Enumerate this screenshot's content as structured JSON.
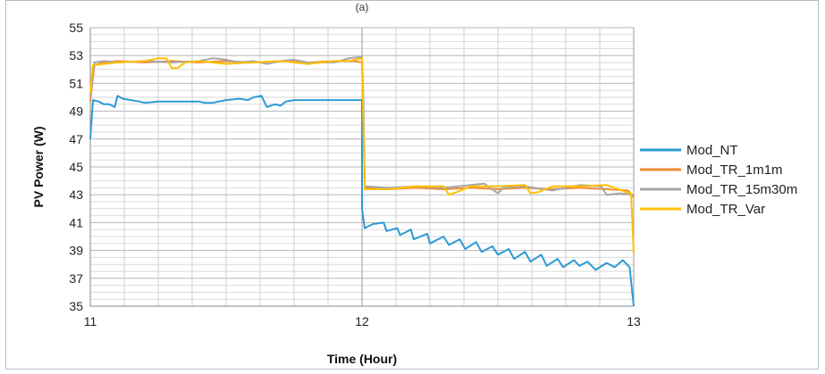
{
  "chart_data": {
    "type": "line",
    "title": "(a)",
    "xlabel": "Time (Hour)",
    "ylabel": "PV Power (W)",
    "xlim": [
      11,
      13
    ],
    "ylim": [
      35,
      55
    ],
    "x_ticks": [
      "11",
      "12",
      "13"
    ],
    "y_ticks": [
      "35",
      "37",
      "39",
      "41",
      "43",
      "45",
      "47",
      "49",
      "51",
      "53",
      "55"
    ],
    "grid": true,
    "legend_position": "right",
    "series": [
      {
        "name": "Mod_NT",
        "color": "#2e9bd6",
        "points": [
          [
            11.0,
            47.0
          ],
          [
            11.01,
            49.8
          ],
          [
            11.03,
            49.7
          ],
          [
            11.05,
            49.5
          ],
          [
            11.07,
            49.5
          ],
          [
            11.09,
            49.3
          ],
          [
            11.1,
            50.1
          ],
          [
            11.12,
            49.9
          ],
          [
            11.15,
            49.8
          ],
          [
            11.18,
            49.7
          ],
          [
            11.2,
            49.6
          ],
          [
            11.25,
            49.7
          ],
          [
            11.3,
            49.7
          ],
          [
            11.35,
            49.7
          ],
          [
            11.4,
            49.7
          ],
          [
            11.42,
            49.6
          ],
          [
            11.45,
            49.6
          ],
          [
            11.5,
            49.8
          ],
          [
            11.55,
            49.9
          ],
          [
            11.58,
            49.8
          ],
          [
            11.6,
            50.0
          ],
          [
            11.63,
            50.1
          ],
          [
            11.65,
            49.3
          ],
          [
            11.68,
            49.5
          ],
          [
            11.7,
            49.4
          ],
          [
            11.72,
            49.7
          ],
          [
            11.75,
            49.8
          ],
          [
            12.0,
            49.8
          ],
          [
            12.0,
            42.0
          ],
          [
            12.01,
            40.6
          ],
          [
            12.04,
            40.9
          ],
          [
            12.08,
            41.0
          ],
          [
            12.09,
            40.4
          ],
          [
            12.13,
            40.6
          ],
          [
            12.14,
            40.1
          ],
          [
            12.18,
            40.5
          ],
          [
            12.19,
            39.8
          ],
          [
            12.24,
            40.2
          ],
          [
            12.25,
            39.5
          ],
          [
            12.3,
            40.0
          ],
          [
            12.32,
            39.4
          ],
          [
            12.36,
            39.8
          ],
          [
            12.38,
            39.1
          ],
          [
            12.42,
            39.6
          ],
          [
            12.44,
            38.9
          ],
          [
            12.48,
            39.3
          ],
          [
            12.5,
            38.7
          ],
          [
            12.54,
            39.1
          ],
          [
            12.56,
            38.4
          ],
          [
            12.6,
            38.9
          ],
          [
            12.62,
            38.2
          ],
          [
            12.66,
            38.7
          ],
          [
            12.68,
            37.9
          ],
          [
            12.72,
            38.4
          ],
          [
            12.74,
            37.8
          ],
          [
            12.78,
            38.3
          ],
          [
            12.8,
            37.9
          ],
          [
            12.83,
            38.2
          ],
          [
            12.86,
            37.6
          ],
          [
            12.9,
            38.1
          ],
          [
            12.93,
            37.8
          ],
          [
            12.96,
            38.3
          ],
          [
            12.985,
            37.8
          ],
          [
            13.0,
            35.0
          ]
        ]
      },
      {
        "name": "Mod_TR_1m1m",
        "color": "#f28c38",
        "points": [
          [
            11.0,
            49.7
          ],
          [
            11.015,
            52.3
          ],
          [
            11.05,
            52.5
          ],
          [
            11.1,
            52.6
          ],
          [
            11.2,
            52.5
          ],
          [
            11.3,
            52.6
          ],
          [
            11.4,
            52.5
          ],
          [
            11.5,
            52.6
          ],
          [
            11.6,
            52.5
          ],
          [
            11.7,
            52.6
          ],
          [
            11.8,
            52.5
          ],
          [
            11.9,
            52.6
          ],
          [
            11.97,
            52.6
          ],
          [
            12.0,
            52.5
          ],
          [
            12.005,
            49.0
          ],
          [
            12.01,
            43.5
          ],
          [
            12.1,
            43.4
          ],
          [
            12.2,
            43.5
          ],
          [
            12.3,
            43.4
          ],
          [
            12.4,
            43.5
          ],
          [
            12.5,
            43.4
          ],
          [
            12.6,
            43.5
          ],
          [
            12.7,
            43.4
          ],
          [
            12.8,
            43.5
          ],
          [
            12.9,
            43.4
          ],
          [
            12.98,
            43.3
          ],
          [
            13.0,
            42.8
          ]
        ]
      },
      {
        "name": "Mod_TR_15m30m",
        "color": "#a6a6a6",
        "points": [
          [
            11.0,
            50.0
          ],
          [
            11.015,
            52.5
          ],
          [
            11.05,
            52.6
          ],
          [
            11.1,
            52.5
          ],
          [
            11.2,
            52.6
          ],
          [
            11.3,
            52.5
          ],
          [
            11.4,
            52.6
          ],
          [
            11.45,
            52.8
          ],
          [
            11.5,
            52.7
          ],
          [
            11.55,
            52.5
          ],
          [
            11.6,
            52.6
          ],
          [
            11.65,
            52.4
          ],
          [
            11.7,
            52.6
          ],
          [
            11.75,
            52.7
          ],
          [
            11.8,
            52.5
          ],
          [
            11.9,
            52.5
          ],
          [
            11.95,
            52.8
          ],
          [
            12.0,
            52.9
          ],
          [
            12.005,
            50.0
          ],
          [
            12.01,
            43.6
          ],
          [
            12.1,
            43.5
          ],
          [
            12.2,
            43.6
          ],
          [
            12.3,
            43.5
          ],
          [
            12.4,
            43.7
          ],
          [
            12.45,
            43.8
          ],
          [
            12.5,
            43.1
          ],
          [
            12.52,
            43.5
          ],
          [
            12.6,
            43.6
          ],
          [
            12.7,
            43.3
          ],
          [
            12.8,
            43.7
          ],
          [
            12.88,
            43.6
          ],
          [
            12.9,
            43.0
          ],
          [
            12.95,
            43.1
          ],
          [
            13.0,
            43.0
          ]
        ]
      },
      {
        "name": "Mod_TR_Var",
        "color": "#ffc000",
        "points": [
          [
            11.0,
            50.3
          ],
          [
            11.01,
            52.3
          ],
          [
            11.05,
            52.4
          ],
          [
            11.1,
            52.5
          ],
          [
            11.2,
            52.6
          ],
          [
            11.25,
            52.8
          ],
          [
            11.28,
            52.8
          ],
          [
            11.3,
            52.1
          ],
          [
            11.32,
            52.1
          ],
          [
            11.35,
            52.5
          ],
          [
            11.4,
            52.6
          ],
          [
            11.5,
            52.4
          ],
          [
            11.6,
            52.5
          ],
          [
            11.7,
            52.6
          ],
          [
            11.8,
            52.4
          ],
          [
            11.9,
            52.6
          ],
          [
            11.95,
            52.6
          ],
          [
            12.0,
            52.8
          ],
          [
            12.003,
            50.0
          ],
          [
            12.01,
            43.4
          ],
          [
            12.1,
            43.4
          ],
          [
            12.2,
            43.6
          ],
          [
            12.3,
            43.6
          ],
          [
            12.32,
            43.0
          ],
          [
            12.35,
            43.2
          ],
          [
            12.4,
            43.6
          ],
          [
            12.5,
            43.6
          ],
          [
            12.6,
            43.7
          ],
          [
            12.62,
            43.1
          ],
          [
            12.65,
            43.2
          ],
          [
            12.7,
            43.6
          ],
          [
            12.8,
            43.6
          ],
          [
            12.9,
            43.7
          ],
          [
            12.97,
            43.2
          ],
          [
            12.99,
            43.1
          ],
          [
            13.0,
            38.8
          ]
        ]
      }
    ]
  }
}
